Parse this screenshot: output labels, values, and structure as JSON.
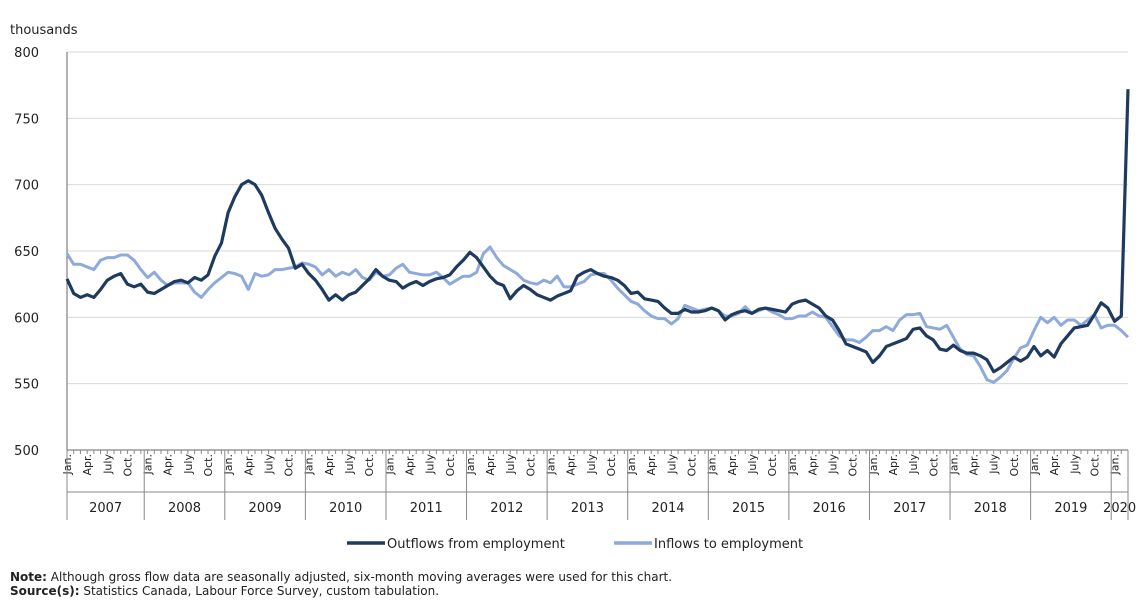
{
  "chart_data": {
    "type": "line",
    "unit_label": "thousands",
    "ylim": [
      500,
      800
    ],
    "yticks": [
      500,
      550,
      600,
      650,
      700,
      750,
      800
    ],
    "x_start": "2007-01",
    "month_labels": [
      "Jan.",
      "Apr.",
      "July",
      "Oct."
    ],
    "years": [
      "2007",
      "2008",
      "2009",
      "2010",
      "2011",
      "2012",
      "2013",
      "2014",
      "2015",
      "2016",
      "2017",
      "2018",
      "2019",
      "2020"
    ],
    "grid": true,
    "legend_position": "bottom",
    "series": [
      {
        "name": "Outflows from employment",
        "color": "#1f3a5f",
        "values": [
          629,
          618,
          615,
          617,
          615,
          621,
          628,
          631,
          633,
          625,
          623,
          625,
          619,
          618,
          621,
          624,
          627,
          628,
          626,
          630,
          628,
          632,
          646,
          656,
          679,
          691,
          700,
          703,
          700,
          692,
          679,
          667,
          659,
          652,
          637,
          640,
          633,
          628,
          621,
          613,
          617,
          613,
          617,
          619,
          624,
          629,
          636,
          631,
          628,
          627,
          622,
          625,
          627,
          624,
          627,
          629,
          630,
          632,
          638,
          643,
          649,
          645,
          638,
          631,
          626,
          624,
          614,
          620,
          624,
          621,
          617,
          615,
          613,
          616,
          618,
          620,
          631,
          634,
          636,
          633,
          631,
          630,
          628,
          624,
          618,
          619,
          614,
          613,
          612,
          607,
          603,
          603,
          606,
          604,
          604,
          605,
          607,
          605,
          598,
          602,
          604,
          605,
          603,
          606,
          607,
          606,
          605,
          604,
          610,
          612,
          613,
          610,
          607,
          601,
          598,
          590,
          580,
          578,
          576,
          574,
          566,
          571,
          578,
          580,
          582,
          584,
          591,
          592,
          586,
          583,
          576,
          575,
          579,
          575,
          573,
          573,
          571,
          568,
          559,
          562,
          566,
          570,
          567,
          570,
          578,
          571,
          575,
          570,
          580,
          586,
          592,
          593,
          594,
          602,
          611,
          607,
          597,
          601,
          772
        ]
      },
      {
        "name": "Inflows to employment",
        "color": "#8ea9db",
        "values": [
          648,
          640,
          640,
          638,
          636,
          643,
          645,
          645,
          647,
          647,
          643,
          636,
          630,
          634,
          628,
          624,
          626,
          626,
          626,
          619,
          615,
          621,
          626,
          630,
          634,
          633,
          631,
          621,
          633,
          631,
          632,
          636,
          636,
          637,
          638,
          641,
          640,
          638,
          632,
          636,
          631,
          634,
          632,
          636,
          630,
          628,
          634,
          631,
          632,
          637,
          640,
          634,
          633,
          632,
          632,
          634,
          630,
          625,
          628,
          631,
          631,
          634,
          648,
          653,
          645,
          639,
          636,
          633,
          628,
          626,
          625,
          628,
          626,
          631,
          623,
          623,
          625,
          627,
          632,
          633,
          633,
          628,
          622,
          617,
          612,
          610,
          605,
          601,
          599,
          599,
          595,
          599,
          609,
          607,
          605,
          606,
          607,
          605,
          601,
          601,
          603,
          608,
          603,
          605,
          607,
          604,
          602,
          599,
          599,
          601,
          601,
          604,
          601,
          600,
          593,
          586,
          583,
          583,
          581,
          585,
          590,
          590,
          593,
          590,
          598,
          602,
          602,
          603,
          593,
          592,
          591,
          594,
          585,
          576,
          572,
          571,
          563,
          553,
          551,
          555,
          560,
          569,
          577,
          579,
          590,
          600,
          596,
          600,
          594,
          598,
          598,
          594,
          598,
          602,
          592,
          594,
          594,
          590,
          585
        ]
      }
    ]
  },
  "notes": {
    "note_label": "Note:",
    "note_text": " Although gross flow data are seasonally adjusted, six-month moving averages were used for this chart.",
    "source_label": "Source(s):",
    "source_text": " Statistics Canada, Labour Force Survey, custom tabulation."
  }
}
